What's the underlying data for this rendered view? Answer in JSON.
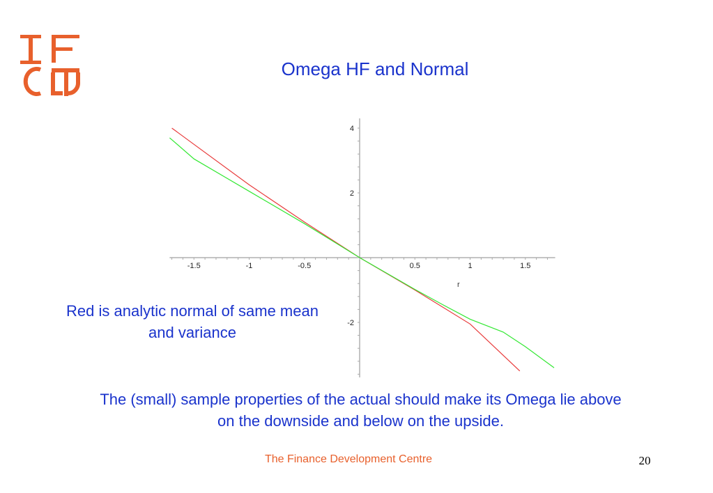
{
  "slide": {
    "title": "Omega HF and Normal",
    "note": "Red is analytic normal of same mean and variance",
    "caption": "The (small) sample properties of the actual should make its Omega lie above on the downside and below on the upside.",
    "footer": "The Finance Development Centre",
    "page_number": "20",
    "brand_color": "#e8602c",
    "text_color": "#1a33cc"
  },
  "chart_data": {
    "type": "line",
    "title": "",
    "xlabel": "r",
    "ylabel": "",
    "xlim": [
      -1.72,
      1.77
    ],
    "ylim": [
      -3.7,
      4.3
    ],
    "x_ticks": [
      -1.5,
      -1,
      -0.5,
      0.5,
      1,
      1.5
    ],
    "x_tick_labels": [
      "-1.5",
      "-1",
      "-0.5",
      "0.5",
      "1",
      "1.5"
    ],
    "y_ticks": [
      4,
      2,
      -2
    ],
    "y_tick_labels": [
      "4",
      "2",
      "-2"
    ],
    "grid": false,
    "series": [
      {
        "color": "#e83a3a",
        "x": [
          -1.7,
          -1.5,
          -1.0,
          -0.5,
          0.0,
          0.5,
          1.0,
          1.45
        ],
        "y": [
          4.0,
          3.5,
          2.25,
          1.1,
          0.0,
          -1.0,
          -2.05,
          -3.5
        ]
      },
      {
        "color": "#33e833",
        "x": [
          -1.72,
          -1.5,
          -1.0,
          -0.5,
          0.0,
          0.5,
          0.75,
          1.0,
          1.3,
          1.5,
          1.76
        ],
        "y": [
          3.7,
          3.05,
          2.05,
          1.05,
          0.0,
          -0.98,
          -1.45,
          -1.9,
          -2.3,
          -2.75,
          -3.4
        ]
      }
    ]
  }
}
